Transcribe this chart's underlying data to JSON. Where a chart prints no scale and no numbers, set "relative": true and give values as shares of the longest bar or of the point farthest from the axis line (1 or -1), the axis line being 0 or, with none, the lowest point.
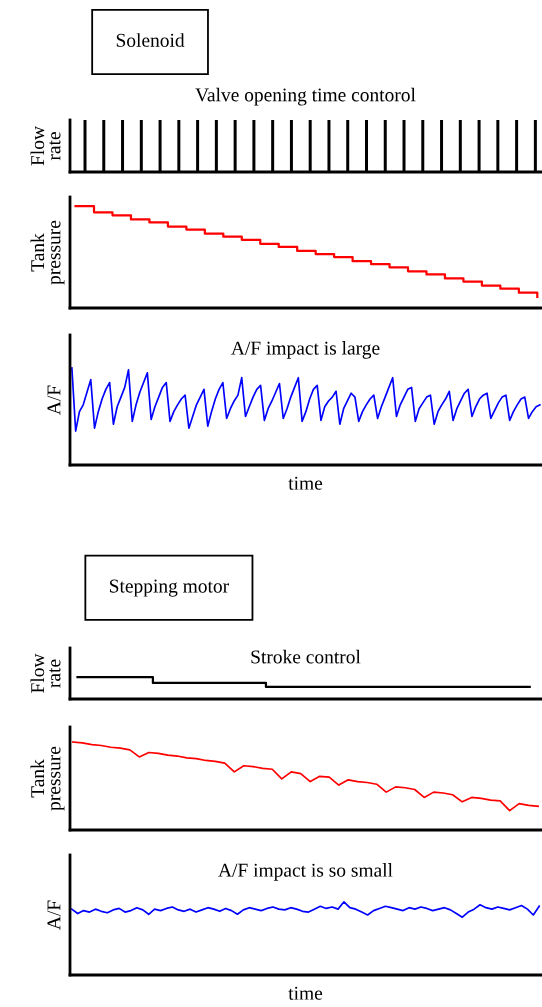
{
  "chart_data": [
    {
      "type": "bar",
      "relative": true,
      "title": "Valve opening time contorol",
      "ylabel": "Flow\nrate",
      "annotations": [
        "Solenoid"
      ],
      "categories": [
        null,
        null,
        null,
        null,
        null,
        null,
        null,
        null,
        null,
        null,
        null,
        null,
        null,
        null,
        null,
        null,
        null,
        null,
        null,
        null,
        null,
        null,
        null,
        null,
        null
      ],
      "series": [
        {
          "color": "#000000",
          "values": [
            1,
            1,
            1,
            1,
            1,
            1,
            1,
            1,
            1,
            1,
            1,
            1,
            1,
            1,
            1,
            1,
            1,
            1,
            1,
            1,
            1,
            1,
            1,
            1,
            1
          ]
        }
      ]
    },
    {
      "type": "step",
      "relative": true,
      "ylabel": "Tank\npressure",
      "categories": [
        null,
        null,
        null,
        null,
        null,
        null,
        null,
        null,
        null,
        null,
        null,
        null,
        null,
        null,
        null,
        null,
        null,
        null,
        null,
        null,
        null,
        null,
        null,
        null,
        null,
        null
      ],
      "series": [
        {
          "color": "#ff0000",
          "values": [
            1.0,
            0.94,
            0.91,
            0.87,
            0.84,
            0.8,
            0.77,
            0.73,
            0.7,
            0.67,
            0.63,
            0.6,
            0.56,
            0.53,
            0.5,
            0.46,
            0.43,
            0.4,
            0.36,
            0.33,
            0.29,
            0.26,
            0.22,
            0.19,
            0.15,
            0.11
          ]
        }
      ]
    },
    {
      "type": "line",
      "relative": true,
      "title": "A/F impact is large",
      "ylabel": "A/F",
      "xlabel": "time",
      "categories": [
        null,
        null,
        null,
        null,
        null,
        null,
        null,
        null,
        null,
        null,
        null,
        null,
        null,
        null,
        null,
        null,
        null,
        null,
        null,
        null,
        null,
        null,
        null,
        null,
        null,
        null,
        null,
        null,
        null,
        null,
        null,
        null,
        null,
        null,
        null,
        null,
        null,
        null,
        null,
        null,
        null,
        null,
        null,
        null,
        null,
        null,
        null,
        null,
        null,
        null,
        null,
        null,
        null,
        null,
        null,
        null,
        null,
        null,
        null,
        null,
        null,
        null,
        null,
        null,
        null,
        null,
        null,
        null,
        null,
        null,
        null,
        null,
        null,
        null,
        null,
        null,
        null,
        null,
        null,
        null,
        null,
        null,
        null,
        null,
        null,
        null,
        null,
        null,
        null,
        null,
        null,
        null,
        null,
        null,
        null,
        null,
        null,
        null,
        null,
        null,
        null,
        null,
        null,
        null,
        null,
        null,
        null,
        null,
        null,
        null,
        null,
        null,
        null,
        null,
        null,
        null,
        null,
        null,
        null,
        null,
        null,
        null,
        null,
        null,
        null
      ],
      "series": [
        {
          "color": "#0000ff",
          "values": [
            1.0,
            0.35,
            0.55,
            0.62,
            0.75,
            0.88,
            0.38,
            0.55,
            0.68,
            0.78,
            0.85,
            0.42,
            0.6,
            0.7,
            0.8,
            0.98,
            0.45,
            0.62,
            0.75,
            0.85,
            0.95,
            0.47,
            0.6,
            0.7,
            0.8,
            0.85,
            0.45,
            0.55,
            0.62,
            0.68,
            0.72,
            0.38,
            0.5,
            0.62,
            0.7,
            0.78,
            0.4,
            0.55,
            0.68,
            0.78,
            0.85,
            0.48,
            0.58,
            0.66,
            0.72,
            0.9,
            0.5,
            0.6,
            0.7,
            0.78,
            0.82,
            0.46,
            0.58,
            0.66,
            0.75,
            0.84,
            0.48,
            0.58,
            0.7,
            0.8,
            0.9,
            0.45,
            0.55,
            0.68,
            0.78,
            0.82,
            0.46,
            0.6,
            0.66,
            0.7,
            0.76,
            0.42,
            0.58,
            0.66,
            0.74,
            0.7,
            0.45,
            0.55,
            0.62,
            0.68,
            0.72,
            0.48,
            0.6,
            0.7,
            0.8,
            0.9,
            0.5,
            0.62,
            0.7,
            0.78,
            0.8,
            0.45,
            0.58,
            0.64,
            0.7,
            0.72,
            0.42,
            0.55,
            0.62,
            0.68,
            0.76,
            0.46,
            0.58,
            0.66,
            0.74,
            0.78,
            0.5,
            0.6,
            0.68,
            0.72,
            0.74,
            0.48,
            0.56,
            0.64,
            0.7,
            0.72,
            0.46,
            0.55,
            0.62,
            0.68,
            0.7,
            0.48,
            0.55,
            0.6,
            0.62
          ]
        }
      ]
    },
    {
      "type": "step",
      "relative": true,
      "title": "Stroke control",
      "ylabel": "Flow\nrate",
      "annotations": [
        "Stepping motor"
      ],
      "categories": [
        null,
        null,
        null,
        null,
        null,
        null,
        null,
        null,
        null,
        null,
        null,
        null,
        null
      ],
      "series": [
        {
          "color": "#000000",
          "values": [
            1,
            1,
            0.73,
            0.73,
            0.73,
            0.55,
            0.55,
            0.55,
            0.55,
            0.55,
            0.55,
            0.55,
            0.55
          ]
        }
      ]
    },
    {
      "type": "line",
      "relative": true,
      "ylabel": "Tank\npressure",
      "categories": [
        null,
        null,
        null,
        null,
        null,
        null,
        null,
        null,
        null,
        null,
        null,
        null,
        null,
        null,
        null,
        null,
        null,
        null,
        null,
        null,
        null,
        null,
        null,
        null,
        null,
        null,
        null,
        null,
        null,
        null,
        null,
        null,
        null,
        null,
        null,
        null,
        null,
        null,
        null,
        null,
        null,
        null,
        null,
        null,
        null,
        null,
        null,
        null,
        null,
        null
      ],
      "series": [
        {
          "color": "#ff0000",
          "values": [
            1.0,
            0.99,
            0.97,
            0.96,
            0.94,
            0.93,
            0.91,
            0.83,
            0.88,
            0.87,
            0.85,
            0.84,
            0.82,
            0.81,
            0.79,
            0.78,
            0.76,
            0.66,
            0.73,
            0.72,
            0.7,
            0.69,
            0.58,
            0.66,
            0.64,
            0.55,
            0.61,
            0.6,
            0.51,
            0.57,
            0.55,
            0.54,
            0.52,
            0.43,
            0.49,
            0.48,
            0.46,
            0.37,
            0.43,
            0.42,
            0.4,
            0.32,
            0.37,
            0.36,
            0.34,
            0.33,
            0.22,
            0.3,
            0.28,
            0.27
          ]
        }
      ]
    },
    {
      "type": "line",
      "relative": true,
      "title": "A/F impact is so small",
      "ylabel": "A/F",
      "xlabel": "time",
      "categories": [
        null,
        null,
        null,
        null,
        null,
        null,
        null,
        null,
        null,
        null,
        null,
        null,
        null,
        null,
        null,
        null,
        null,
        null,
        null,
        null,
        null,
        null,
        null,
        null,
        null,
        null,
        null,
        null,
        null,
        null,
        null,
        null,
        null,
        null,
        null,
        null,
        null,
        null,
        null,
        null,
        null,
        null,
        null,
        null,
        null,
        null,
        null,
        null,
        null,
        null,
        null,
        null,
        null,
        null,
        null,
        null,
        null,
        null,
        null,
        null,
        null,
        null,
        null,
        null,
        null,
        null,
        null,
        null,
        null,
        null,
        null,
        null,
        null,
        null,
        null,
        null,
        null,
        null,
        null,
        null
      ],
      "series": [
        {
          "color": "#0000ff",
          "values": [
            0.9,
            0.84,
            0.88,
            0.86,
            0.9,
            0.87,
            0.85,
            0.89,
            0.91,
            0.86,
            0.88,
            0.92,
            0.89,
            0.83,
            0.9,
            0.88,
            0.91,
            0.93,
            0.89,
            0.87,
            0.9,
            0.86,
            0.89,
            0.92,
            0.9,
            0.87,
            0.91,
            0.88,
            0.83,
            0.89,
            0.92,
            0.9,
            0.88,
            0.91,
            0.93,
            0.9,
            0.89,
            0.92,
            0.9,
            0.87,
            0.86,
            0.9,
            0.94,
            0.91,
            0.93,
            0.9,
            1.0,
            0.92,
            0.9,
            0.86,
            0.82,
            0.88,
            0.91,
            0.94,
            0.92,
            0.9,
            0.88,
            0.92,
            0.9,
            0.93,
            0.91,
            0.88,
            0.9,
            0.92,
            0.89,
            0.84,
            0.79,
            0.86,
            0.9,
            0.96,
            0.92,
            0.9,
            0.93,
            0.91,
            0.89,
            0.92,
            0.95,
            0.9,
            0.82,
            0.94
          ]
        }
      ]
    }
  ]
}
